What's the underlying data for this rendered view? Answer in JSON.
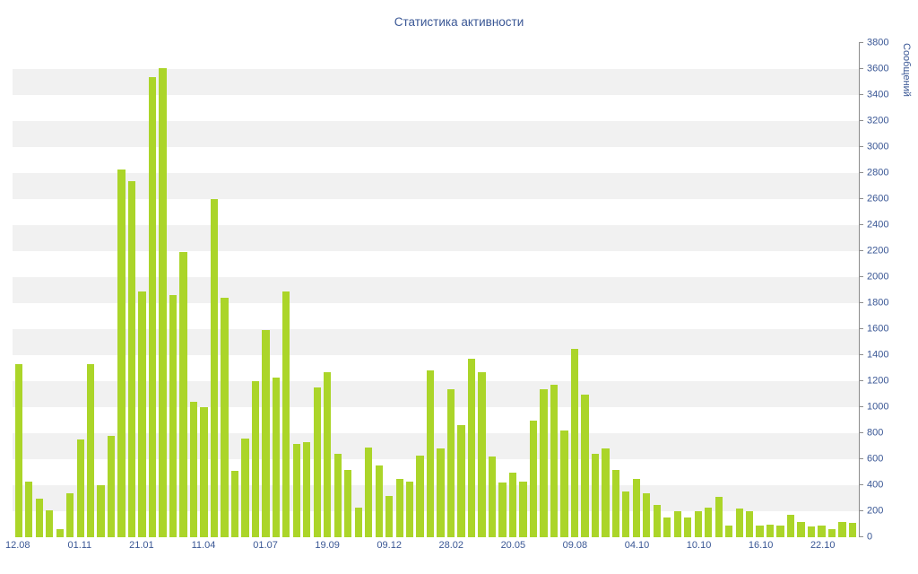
{
  "title": "Статистика активности",
  "colors": {
    "bar": "#abd529",
    "label_text": "#3a5795",
    "axis": "#8c8c8c",
    "stripe": "#f1f1f1",
    "background": "#ffffff"
  },
  "chart_data": {
    "type": "bar",
    "title": "Статистика активности",
    "xlabel": "",
    "ylabel": "Сообщений",
    "ylim": [
      0,
      3800
    ],
    "y_tick_step": 200,
    "y_tick_labels": [
      0,
      200,
      400,
      600,
      800,
      1000,
      1200,
      1400,
      1600,
      1800,
      2000,
      2200,
      2400,
      2600,
      2800,
      3000,
      3200,
      3400,
      3600,
      3800
    ],
    "x_tick_labels": [
      "12.08",
      "01.11",
      "21.01",
      "11.04",
      "01.07",
      "19.09",
      "09.12",
      "28.02",
      "20.05",
      "09.08",
      "04.10",
      "10.10",
      "16.10",
      "22.10"
    ],
    "x_tick_positions": [
      0,
      6,
      12,
      18,
      24,
      30,
      36,
      42,
      48,
      54,
      60,
      66,
      72,
      78
    ],
    "values": [
      1330,
      430,
      300,
      210,
      60,
      340,
      750,
      1330,
      400,
      780,
      2830,
      2740,
      1890,
      3540,
      3610,
      1860,
      2190,
      1040,
      1000,
      2600,
      1840,
      510,
      760,
      1200,
      1590,
      1230,
      1890,
      720,
      730,
      1150,
      1270,
      640,
      520,
      230,
      690,
      550,
      320,
      450,
      430,
      630,
      1280,
      680,
      1140,
      860,
      1370,
      1270,
      620,
      420,
      500,
      430,
      900,
      1140,
      1170,
      820,
      1450,
      1100,
      640,
      680,
      520,
      350,
      450,
      340,
      250,
      150,
      200,
      150,
      200,
      230,
      310,
      90,
      220,
      200,
      90,
      100,
      90,
      170,
      120,
      80,
      90,
      60,
      120,
      110
    ],
    "grid": "horizontal-stripes-every-200",
    "legend": "none",
    "legend_position": "none",
    "y_axis_side": "right"
  }
}
